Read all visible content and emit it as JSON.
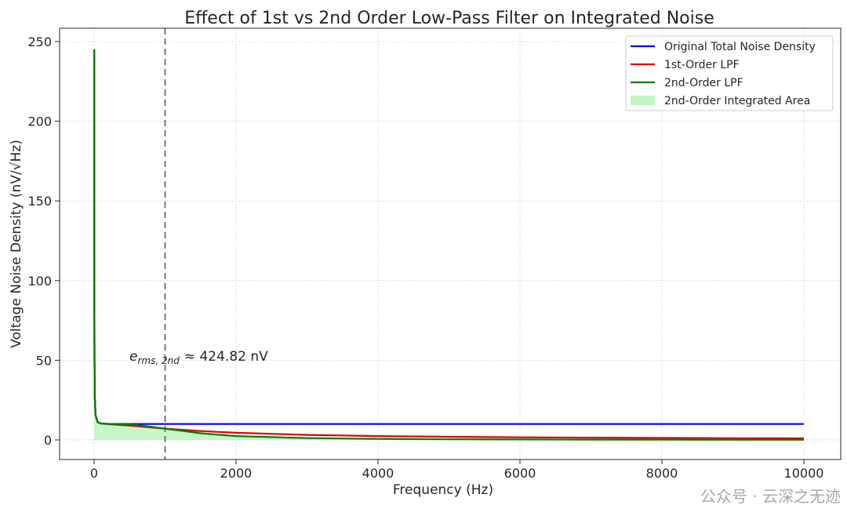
{
  "chart_data": {
    "type": "line",
    "title": "Effect of 1st vs 2nd Order Low-Pass Filter on Integrated Noise",
    "xlabel": "Frequency (Hz)",
    "ylabel": "Voltage Noise Density (nV/√Hz)",
    "xlim": [
      -500,
      10500
    ],
    "ylim": [
      -12,
      262
    ],
    "xticks": [
      0,
      2000,
      4000,
      6000,
      8000,
      10000
    ],
    "xtick_labels": [
      "0",
      "2000",
      "4000",
      "6000",
      "8000",
      "10000"
    ],
    "yticks": [
      0,
      50,
      100,
      150,
      200,
      250
    ],
    "ytick_labels": [
      "0",
      "50",
      "100",
      "150",
      "200",
      "250"
    ],
    "grid": true,
    "legend_position": "top-right",
    "cutoff_line_x": 1000,
    "annotation": {
      "symbol": "e",
      "subscript": "rms, 2nd",
      "text": "≈ 424.82 nV",
      "x": 500,
      "y": 50
    },
    "x": [
      1,
      2,
      5,
      10,
      20,
      50,
      100,
      200,
      300,
      500,
      700,
      1000,
      1500,
      2000,
      3000,
      4000,
      5000,
      6000,
      7000,
      8000,
      9000,
      10000
    ],
    "series": [
      {
        "name": "Original Total Noise Density",
        "color": "#0000ee",
        "values": [
          245.15,
          122.9,
          50,
          26.46,
          15.81,
          11.14,
          10.3,
          10.07,
          10.03,
          10.01,
          10.01,
          10.0,
          10.0,
          10.0,
          10.0,
          10.0,
          10.0,
          10.0,
          10.0,
          10.0,
          10.0,
          10.0
        ]
      },
      {
        "name": "1st-Order LPF",
        "color": "#e00000",
        "values": [
          245.15,
          122.9,
          50,
          26.46,
          15.81,
          11.13,
          10.25,
          9.87,
          9.61,
          8.95,
          8.2,
          7.07,
          5.55,
          4.47,
          3.16,
          2.43,
          1.96,
          1.64,
          1.41,
          1.24,
          1.1,
          1.0
        ]
      },
      {
        "name": "2nd-Order LPF",
        "color": "#008000",
        "values": [
          245.15,
          122.9,
          50,
          26.46,
          15.81,
          11.14,
          10.3,
          10.06,
          9.99,
          9.7,
          8.87,
          7.07,
          4.16,
          2.43,
          1.11,
          0.62,
          0.4,
          0.28,
          0.2,
          0.16,
          0.12,
          0.1
        ]
      },
      {
        "name": "2nd-Order Integrated Area",
        "color": "#90ee90",
        "type": "area",
        "fill_of": "2nd-Order LPF"
      }
    ]
  },
  "watermark": "公众号 · 云深之无迹"
}
